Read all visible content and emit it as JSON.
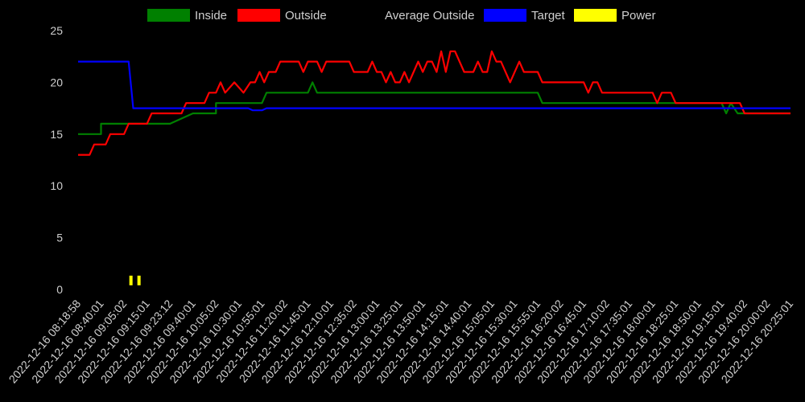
{
  "chart_data": {
    "type": "line",
    "title": "",
    "xlabel": "",
    "ylabel": "",
    "ylim": [
      0,
      25
    ],
    "y_ticks": [
      0,
      5,
      10,
      15,
      20,
      25
    ],
    "grid": false,
    "legend_position": "top",
    "background": "#000000",
    "x_tick_labels": [
      "2022-12-16 08:18:58",
      "2022-12-16 08:40:01",
      "2022-12-16 09:05:02",
      "2022-12-16 09:15:01",
      "2022-12-16 09:23:12",
      "2022-12-16 09:40:01",
      "2022-12-16 10:05:02",
      "2022-12-16 10:30:01",
      "2022-12-16 10:55:01",
      "2022-12-16 11:20:02",
      "2022-12-16 11:45:01",
      "2022-12-16 12:10:01",
      "2022-12-16 12:35:02",
      "2022-12-16 13:00:01",
      "2022-12-16 13:25:01",
      "2022-12-16 13:50:01",
      "2022-12-16 14:15:01",
      "2022-12-16 14:40:01",
      "2022-12-16 15:05:01",
      "2022-12-16 15:30:01",
      "2022-12-16 15:55:01",
      "2022-12-16 16:20:02",
      "2022-12-16 16:45:01",
      "2022-12-16 17:10:02",
      "2022-12-16 17:35:01",
      "2022-12-16 18:00:01",
      "2022-12-16 18:25:01",
      "2022-12-16 18:50:01",
      "2022-12-16 19:15:01",
      "2022-12-16 19:40:02",
      "2022-12-16 20:00:02",
      "2022-12-16 20:25:01"
    ],
    "series": [
      {
        "name": "Inside",
        "color": "#008000",
        "values": [
          [
            0,
            15
          ],
          [
            1,
            15
          ],
          [
            1,
            16
          ],
          [
            2,
            16
          ],
          [
            3,
            16
          ],
          [
            4,
            16
          ],
          [
            5,
            17
          ],
          [
            6,
            17
          ],
          [
            6,
            18
          ],
          [
            7,
            18
          ],
          [
            8,
            18
          ],
          [
            8.2,
            19
          ],
          [
            10,
            19
          ],
          [
            10.2,
            20
          ],
          [
            10.4,
            19
          ],
          [
            12,
            19
          ],
          [
            14,
            19
          ],
          [
            16,
            19
          ],
          [
            18,
            19
          ],
          [
            20,
            19
          ],
          [
            20.2,
            18
          ],
          [
            22,
            18
          ],
          [
            24,
            18
          ],
          [
            26,
            18
          ],
          [
            28,
            18
          ],
          [
            28.2,
            17
          ],
          [
            28.4,
            18
          ],
          [
            28.7,
            17
          ],
          [
            31,
            17
          ]
        ]
      },
      {
        "name": "Outside",
        "color": "#ff0000",
        "values": [
          [
            0,
            13
          ],
          [
            0.5,
            13
          ],
          [
            0.7,
            14
          ],
          [
            1.2,
            14
          ],
          [
            1.4,
            15
          ],
          [
            2,
            15
          ],
          [
            2.2,
            16
          ],
          [
            3,
            16
          ],
          [
            3.2,
            17
          ],
          [
            4.5,
            17
          ],
          [
            4.7,
            18
          ],
          [
            5.5,
            18
          ],
          [
            5.7,
            19
          ],
          [
            6,
            19
          ],
          [
            6.2,
            20
          ],
          [
            6.4,
            19
          ],
          [
            6.8,
            20
          ],
          [
            7.2,
            19
          ],
          [
            7.5,
            20
          ],
          [
            7.7,
            20
          ],
          [
            7.9,
            21
          ],
          [
            8.1,
            20
          ],
          [
            8.3,
            21
          ],
          [
            8.6,
            21
          ],
          [
            8.8,
            22
          ],
          [
            9.6,
            22
          ],
          [
            9.8,
            21
          ],
          [
            10,
            22
          ],
          [
            10.4,
            22
          ],
          [
            10.6,
            21
          ],
          [
            10.8,
            22
          ],
          [
            11.8,
            22
          ],
          [
            12,
            21
          ],
          [
            12.6,
            21
          ],
          [
            12.8,
            22
          ],
          [
            13,
            21
          ],
          [
            13.2,
            21
          ],
          [
            13.4,
            20
          ],
          [
            13.6,
            21
          ],
          [
            13.8,
            20
          ],
          [
            14,
            20
          ],
          [
            14.2,
            21
          ],
          [
            14.4,
            20
          ],
          [
            14.6,
            21
          ],
          [
            14.8,
            22
          ],
          [
            15,
            21
          ],
          [
            15.2,
            22
          ],
          [
            15.4,
            22
          ],
          [
            15.6,
            21
          ],
          [
            15.8,
            23
          ],
          [
            16,
            21
          ],
          [
            16.2,
            23
          ],
          [
            16.4,
            23
          ],
          [
            16.8,
            21
          ],
          [
            17.2,
            21
          ],
          [
            17.4,
            22
          ],
          [
            17.6,
            21
          ],
          [
            17.8,
            21
          ],
          [
            18,
            23
          ],
          [
            18.2,
            22
          ],
          [
            18.4,
            22
          ],
          [
            18.8,
            20
          ],
          [
            19.2,
            22
          ],
          [
            19.4,
            21
          ],
          [
            20,
            21
          ],
          [
            20.2,
            20
          ],
          [
            22,
            20
          ],
          [
            22.2,
            19
          ],
          [
            22.4,
            20
          ],
          [
            22.6,
            20
          ],
          [
            22.8,
            19
          ],
          [
            25,
            19
          ],
          [
            25.2,
            18
          ],
          [
            25.4,
            19
          ],
          [
            25.8,
            19
          ],
          [
            26,
            18
          ],
          [
            28.8,
            18
          ],
          [
            29,
            17
          ],
          [
            31,
            17
          ]
        ]
      },
      {
        "name": "Average Outside",
        "color": "#000000",
        "values": []
      },
      {
        "name": "Target",
        "color": "#0000ff",
        "values": [
          [
            0,
            22
          ],
          [
            2.2,
            22
          ],
          [
            2.4,
            17.5
          ],
          [
            7.4,
            17.5
          ],
          [
            7.6,
            17.3
          ],
          [
            8,
            17.3
          ],
          [
            8.2,
            17.5
          ],
          [
            31,
            17.5
          ]
        ]
      },
      {
        "name": "Power",
        "color": "#ffff00",
        "values": [],
        "marks": [
          [
            2.3,
            0.4
          ],
          [
            2.65,
            0.4
          ]
        ]
      }
    ]
  }
}
